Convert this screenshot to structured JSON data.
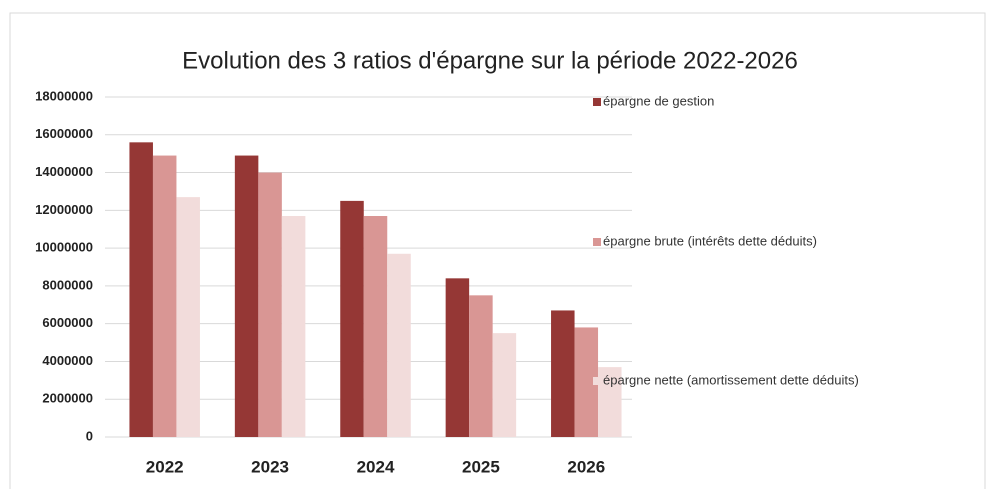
{
  "chart_data": {
    "type": "bar",
    "title": "Evolution des 3 ratios d'épargne sur la période 2022-2026",
    "categories": [
      "2022",
      "2023",
      "2024",
      "2025",
      "2026"
    ],
    "series": [
      {
        "name": "épargne de gestion",
        "color": "#953735",
        "values": [
          15600000,
          14900000,
          12500000,
          8400000,
          6700000
        ]
      },
      {
        "name": "épargne brute (intérêts dette déduits)",
        "color": "#d99694",
        "values": [
          14900000,
          14000000,
          11700000,
          7500000,
          5800000
        ]
      },
      {
        "name": "épargne nette (amortissement dette déduits)",
        "color": "#f2dcdb",
        "values": [
          12700000,
          11700000,
          9700000,
          5500000,
          3700000
        ]
      }
    ],
    "ylim": [
      0,
      18000000
    ],
    "yticks": [
      0,
      2000000,
      4000000,
      6000000,
      8000000,
      10000000,
      12000000,
      14000000,
      16000000,
      18000000
    ],
    "grid": true,
    "legend": "right"
  }
}
